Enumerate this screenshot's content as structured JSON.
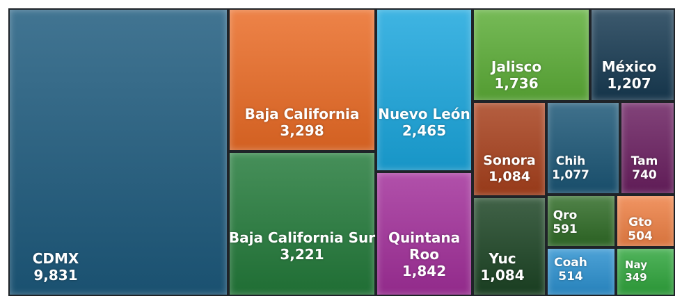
{
  "chart_data": {
    "type": "treemap",
    "items": [
      {
        "name": "CDMX",
        "value": 9831,
        "label": "CDMX",
        "value_label": "9,831",
        "color": "#1d5a7d"
      },
      {
        "name": "Baja California",
        "value": 3298,
        "label": "Baja California",
        "value_label": "3,298",
        "color": "#ea6b25"
      },
      {
        "name": "Baja California Sur",
        "value": 3221,
        "label": "Baja California Sur",
        "value_label": "3,221",
        "color": "#237a3a"
      },
      {
        "name": "Nuevo León",
        "value": 2465,
        "label": "Nuevo León",
        "value_label": "2,465",
        "color": "#1aa6dd"
      },
      {
        "name": "Quintana Roo",
        "value": 1842,
        "label": "Quintana Roo",
        "value_label": "1,842",
        "color": "#a22f9a"
      },
      {
        "name": "Jalisco",
        "value": 1736,
        "label": "Jalisco",
        "value_label": "1,736",
        "color": "#5cad37"
      },
      {
        "name": "México",
        "value": 1207,
        "label": "México",
        "value_label": "1,207",
        "color": "#173a52"
      },
      {
        "name": "Sonora",
        "value": 1084,
        "label": "Sonora",
        "value_label": "1,084",
        "color": "#a7401c"
      },
      {
        "name": "Yuc",
        "value": 1084,
        "label": "Yuc",
        "value_label": "1,084",
        "color": "#1c4424"
      },
      {
        "name": "Chih",
        "value": 1077,
        "label": "Chih",
        "value_label": "1,077",
        "color": "#1b5676"
      },
      {
        "name": "Tam",
        "value": 740,
        "label": "Tam",
        "value_label": "740",
        "color": "#6a1f60"
      },
      {
        "name": "Qro",
        "value": 591,
        "label": "Qro",
        "value_label": "591",
        "color": "#2f6b26"
      },
      {
        "name": "Gto",
        "value": 504,
        "label": "Gto",
        "value_label": "504",
        "color": "#ee8044"
      },
      {
        "name": "Coah",
        "value": 514,
        "label": "Coah",
        "value_label": "514",
        "color": "#2b90cf"
      },
      {
        "name": "Nay",
        "value": 349,
        "label": "Nay",
        "value_label": "349",
        "color": "#2fa53c"
      }
    ]
  }
}
